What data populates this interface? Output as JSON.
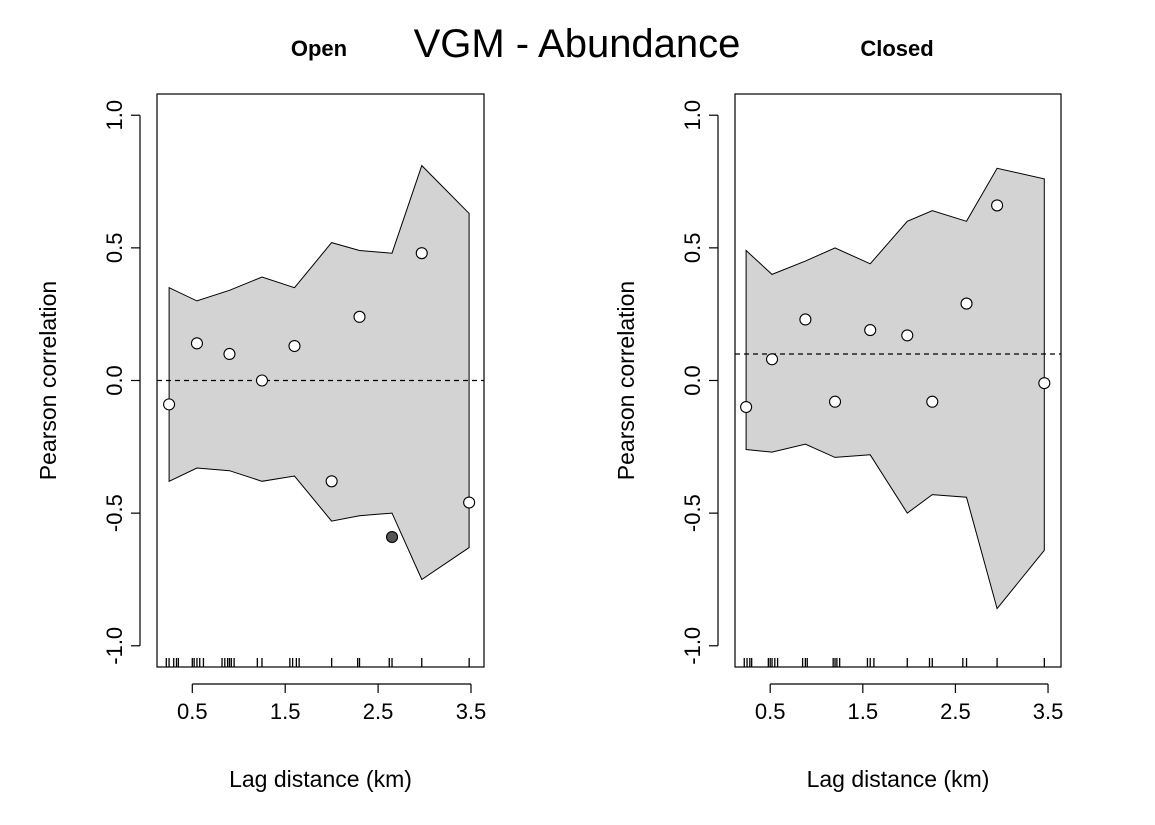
{
  "title": "VGM - Abundance",
  "chart_data": [
    {
      "type": "scatter",
      "title": "Open",
      "xlabel": "Lag distance (km)",
      "ylabel": "Pearson correlation",
      "xlim": [
        0.12,
        3.64
      ],
      "ylim": [
        -1.08,
        1.08
      ],
      "xticks": [
        0.5,
        1.5,
        2.5,
        3.5
      ],
      "xtick_labels": [
        "0.5",
        "1.5",
        "2.5",
        "3.5"
      ],
      "yticks": [
        -1.0,
        -0.5,
        0.0,
        0.5,
        1.0
      ],
      "ytick_labels": [
        "-1.0",
        "-0.5",
        "0.0",
        "0.5",
        "1.0"
      ],
      "reference_line": 0.0,
      "envelope": {
        "x": [
          0.25,
          0.55,
          0.9,
          1.25,
          1.6,
          2.0,
          2.3,
          2.65,
          2.97,
          3.48
        ],
        "upper": [
          0.35,
          0.3,
          0.34,
          0.39,
          0.35,
          0.52,
          0.49,
          0.48,
          0.81,
          0.63
        ],
        "lower": [
          -0.38,
          -0.33,
          -0.34,
          -0.38,
          -0.36,
          -0.53,
          -0.51,
          -0.5,
          -0.75,
          -0.63
        ]
      },
      "points": {
        "x": [
          0.25,
          0.55,
          0.9,
          1.25,
          1.6,
          2.0,
          2.3,
          2.65,
          2.97,
          3.48
        ],
        "y": [
          -0.09,
          0.14,
          0.1,
          0.0,
          0.13,
          -0.38,
          0.24,
          -0.59,
          0.48,
          -0.46
        ],
        "significant": [
          false,
          false,
          false,
          false,
          false,
          false,
          false,
          true,
          false,
          false
        ]
      },
      "rug": [
        0.22,
        0.25,
        0.3,
        0.33,
        0.35,
        0.5,
        0.52,
        0.55,
        0.58,
        0.62,
        0.82,
        0.85,
        0.88,
        0.9,
        0.92,
        0.95,
        1.2,
        1.25,
        1.55,
        1.58,
        1.62,
        1.65,
        2.0,
        2.28,
        2.3,
        2.62,
        2.65,
        2.97,
        3.48
      ]
    },
    {
      "type": "scatter",
      "title": "Closed",
      "xlabel": "Lag distance (km)",
      "ylabel": "Pearson correlation",
      "xlim": [
        0.12,
        3.64
      ],
      "ylim": [
        -1.08,
        1.08
      ],
      "xticks": [
        0.5,
        1.5,
        2.5,
        3.5
      ],
      "xtick_labels": [
        "0.5",
        "1.5",
        "2.5",
        "3.5"
      ],
      "yticks": [
        -1.0,
        -0.5,
        0.0,
        0.5,
        1.0
      ],
      "ytick_labels": [
        "-1.0",
        "-0.5",
        "0.0",
        "0.5",
        "1.0"
      ],
      "reference_line": 0.1,
      "envelope": {
        "x": [
          0.24,
          0.52,
          0.88,
          1.2,
          1.58,
          1.98,
          2.25,
          2.62,
          2.95,
          3.46
        ],
        "upper": [
          0.49,
          0.4,
          0.45,
          0.5,
          0.44,
          0.6,
          0.64,
          0.6,
          0.8,
          0.76
        ],
        "lower": [
          -0.26,
          -0.27,
          -0.24,
          -0.29,
          -0.28,
          -0.5,
          -0.43,
          -0.44,
          -0.86,
          -0.64
        ]
      },
      "points": {
        "x": [
          0.24,
          0.52,
          0.88,
          1.2,
          1.58,
          1.98,
          2.25,
          2.62,
          2.95,
          3.46
        ],
        "y": [
          -0.1,
          0.08,
          0.23,
          -0.08,
          0.19,
          0.17,
          -0.08,
          0.29,
          0.66,
          -0.01
        ],
        "significant": [
          false,
          false,
          false,
          false,
          false,
          false,
          false,
          false,
          false,
          false
        ]
      },
      "rug": [
        0.22,
        0.25,
        0.28,
        0.3,
        0.48,
        0.5,
        0.52,
        0.55,
        0.58,
        0.85,
        0.88,
        0.9,
        1.18,
        1.2,
        1.22,
        1.25,
        1.55,
        1.58,
        1.62,
        1.98,
        2.22,
        2.25,
        2.58,
        2.62,
        2.95,
        3.46
      ]
    }
  ]
}
